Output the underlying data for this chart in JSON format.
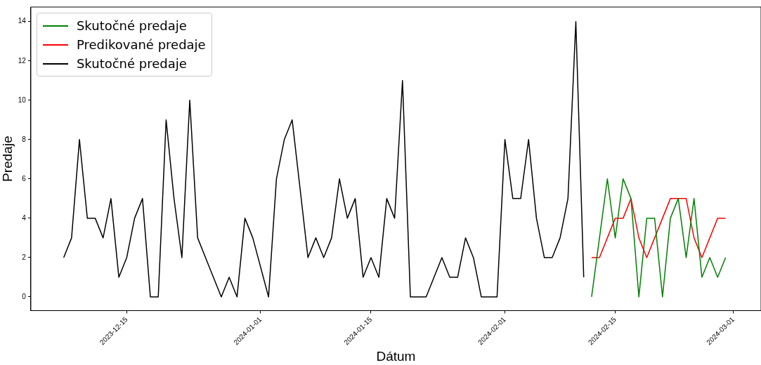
{
  "chart_data": {
    "type": "line",
    "xlabel": "Dátum",
    "ylabel": "Predaje",
    "xlim": [
      "2023-12-02T20:00",
      "2024-03-04T12:00"
    ],
    "xticks": [
      "2023-12-15",
      "2024-01-01",
      "2024-01-15",
      "2024-02-01",
      "2024-02-15",
      "2024-03-01"
    ],
    "ylim": [
      -0.7,
      14.74
    ],
    "yticks": [
      0,
      2,
      4,
      6,
      8,
      10,
      12,
      14
    ],
    "grid": false,
    "legend": "top left",
    "marker": "none",
    "line_style": "solid",
    "series": [
      {
        "name": "Skutočné predaje",
        "color": "#008000",
        "x": [
          "2024-02-12",
          "2024-02-13",
          "2024-02-14",
          "2024-02-15",
          "2024-02-16",
          "2024-02-17",
          "2024-02-18",
          "2024-02-19",
          "2024-02-20",
          "2024-02-21",
          "2024-02-22",
          "2024-02-23",
          "2024-02-24",
          "2024-02-25",
          "2024-02-26",
          "2024-02-27",
          "2024-02-28",
          "2024-02-29"
        ],
        "values": [
          0,
          3,
          6,
          3,
          6,
          5,
          0,
          4,
          4,
          0,
          4,
          5,
          2,
          5,
          1,
          2,
          1,
          2
        ]
      },
      {
        "name": "Predikované predaje",
        "color": "#ff0000",
        "x": [
          "2024-02-12",
          "2024-02-13",
          "2024-02-14",
          "2024-02-15",
          "2024-02-16",
          "2024-02-17",
          "2024-02-18",
          "2024-02-19",
          "2024-02-20",
          "2024-02-21",
          "2024-02-22",
          "2024-02-23",
          "2024-02-24",
          "2024-02-25",
          "2024-02-26",
          "2024-02-27",
          "2024-02-28",
          "2024-02-29"
        ],
        "values": [
          2,
          2,
          3,
          4,
          4,
          5,
          3,
          2,
          3,
          4,
          5,
          5,
          5,
          3,
          2,
          3,
          4,
          4
        ]
      },
      {
        "name": "Skutočné predaje",
        "color": "#000000",
        "x": [
          "2023-12-07",
          "2023-12-08",
          "2023-12-09",
          "2023-12-10",
          "2023-12-11",
          "2023-12-12",
          "2023-12-13",
          "2023-12-14",
          "2023-12-15",
          "2023-12-16",
          "2023-12-17",
          "2023-12-18",
          "2023-12-19",
          "2023-12-20",
          "2023-12-21",
          "2023-12-22",
          "2023-12-23",
          "2023-12-24",
          "2023-12-25",
          "2023-12-26",
          "2023-12-27",
          "2023-12-28",
          "2023-12-29",
          "2023-12-30",
          "2023-12-31",
          "2024-01-02",
          "2024-01-03",
          "2024-01-04",
          "2024-01-05",
          "2024-01-07",
          "2024-01-08",
          "2024-01-09",
          "2024-01-10",
          "2024-01-11",
          "2024-01-12",
          "2024-01-13",
          "2024-01-14",
          "2024-01-15",
          "2024-01-16",
          "2024-01-17",
          "2024-01-18",
          "2024-01-19",
          "2024-01-20",
          "2024-01-21",
          "2024-01-22",
          "2024-01-23",
          "2024-01-24",
          "2024-01-25",
          "2024-01-26",
          "2024-01-27",
          "2024-01-28",
          "2024-01-29",
          "2024-01-30",
          "2024-01-31",
          "2024-02-01",
          "2024-02-02",
          "2024-02-03",
          "2024-02-04",
          "2024-02-05",
          "2024-02-06",
          "2024-02-07",
          "2024-02-08",
          "2024-02-09",
          "2024-02-10",
          "2024-02-11"
        ],
        "values": [
          2,
          3,
          8,
          4,
          4,
          3,
          5,
          1,
          2,
          4,
          5,
          0,
          0,
          9,
          5,
          2,
          10,
          3,
          2,
          1,
          0,
          1,
          0,
          4,
          3,
          0,
          6,
          8,
          9,
          2,
          3,
          2,
          3,
          6,
          4,
          5,
          1,
          2,
          1,
          5,
          4,
          11,
          0,
          0,
          0,
          1,
          2,
          1,
          1,
          3,
          2,
          0,
          0,
          0,
          8,
          5,
          5,
          8,
          4,
          2,
          2,
          3,
          5,
          14,
          1
        ]
      }
    ]
  }
}
